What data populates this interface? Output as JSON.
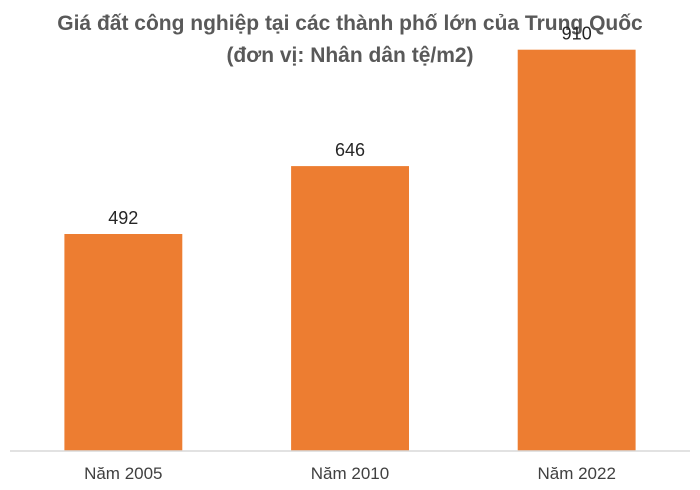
{
  "chart_data": {
    "type": "bar",
    "title": "Giá đất công nghiệp tại các thành phố lớn của Trung Quốc (đơn vị: Nhân dân tệ/m2)",
    "categories": [
      "Năm 2005",
      "Năm 2010",
      "Năm 2022"
    ],
    "values": [
      492,
      646,
      910
    ],
    "data_labels": [
      "492",
      "646",
      "910"
    ],
    "xlabel": "",
    "ylabel": "",
    "ylim": [
      0,
      1000
    ],
    "grid": false,
    "legend": "none",
    "bar_color": "#ED7D31",
    "axis_color": "#D9D9D9"
  }
}
